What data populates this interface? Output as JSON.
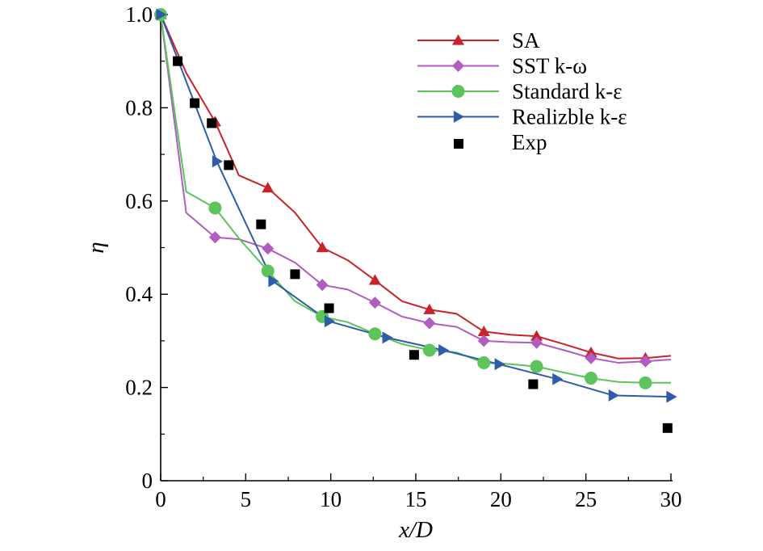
{
  "chart_data": {
    "type": "line",
    "title": "",
    "xlabel": "x/D",
    "ylabel": "η",
    "xlim": [
      0,
      30
    ],
    "ylim": [
      0,
      1.0
    ],
    "xticks": [
      0,
      5,
      10,
      15,
      20,
      25,
      30
    ],
    "xtick_labels": [
      "0",
      "5",
      "10",
      "15",
      "20",
      "25",
      "30"
    ],
    "yticks": [
      0,
      0.2,
      0.4,
      0.6,
      0.8,
      1.0
    ],
    "ytick_labels": [
      "0",
      "0.2",
      "0.4",
      "0.6",
      "0.8",
      "1.0"
    ],
    "grid": false,
    "legend_position": "top-right",
    "series": [
      {
        "name": "SA",
        "color": "#c8232a",
        "marker": "triangle",
        "x": [
          0,
          1.5,
          3.2,
          4.6,
          6.3,
          7.9,
          9.5,
          11.0,
          12.6,
          14.2,
          15.8,
          17.4,
          19.0,
          20.6,
          22.1,
          23.7,
          25.3,
          26.9,
          28.5,
          30.0
        ],
        "y": [
          1.0,
          0.875,
          0.77,
          0.655,
          0.628,
          0.575,
          0.5,
          0.473,
          0.43,
          0.385,
          0.367,
          0.358,
          0.32,
          0.313,
          0.31,
          0.293,
          0.275,
          0.262,
          0.263,
          0.268
        ],
        "marker_indices": [
          0,
          2,
          4,
          6,
          8,
          10,
          12,
          14,
          16,
          18
        ]
      },
      {
        "name": "SST k-ω",
        "color": "#b05cc0",
        "marker": "diamond",
        "x": [
          0,
          1.5,
          3.2,
          4.6,
          6.3,
          7.9,
          9.5,
          11.0,
          12.6,
          14.2,
          15.8,
          17.4,
          19.0,
          20.6,
          22.1,
          23.7,
          25.3,
          26.9,
          28.5,
          30.0
        ],
        "y": [
          1.0,
          0.575,
          0.522,
          0.518,
          0.498,
          0.468,
          0.42,
          0.41,
          0.382,
          0.352,
          0.338,
          0.33,
          0.3,
          0.297,
          0.296,
          0.28,
          0.263,
          0.253,
          0.256,
          0.26
        ],
        "marker_indices": [
          0,
          2,
          4,
          6,
          8,
          10,
          12,
          14,
          16,
          18
        ]
      },
      {
        "name": "Standard k-ε",
        "color": "#5cc45a",
        "marker": "circle",
        "x": [
          0,
          1.5,
          3.2,
          4.6,
          6.3,
          7.9,
          9.5,
          11.0,
          12.6,
          14.2,
          15.8,
          17.4,
          19.0,
          20.6,
          22.1,
          23.7,
          25.3,
          26.9,
          28.5,
          30.0
        ],
        "y": [
          1.0,
          0.62,
          0.585,
          0.52,
          0.45,
          0.385,
          0.352,
          0.34,
          0.315,
          0.293,
          0.28,
          0.275,
          0.253,
          0.25,
          0.245,
          0.232,
          0.22,
          0.212,
          0.21,
          0.21
        ],
        "marker_indices": [
          0,
          2,
          4,
          6,
          8,
          10,
          12,
          14,
          16,
          18
        ]
      },
      {
        "name": "Realizble k-ε",
        "color": "#2f5ca8",
        "marker": "triangle-right",
        "x": [
          0,
          3.3,
          6.6,
          9.9,
          13.3,
          16.6,
          19.9,
          23.3,
          26.6,
          30.0
        ],
        "y": [
          1.0,
          0.685,
          0.428,
          0.342,
          0.307,
          0.28,
          0.25,
          0.218,
          0.183,
          0.18
        ],
        "marker_indices": [
          0,
          1,
          2,
          3,
          4,
          5,
          6,
          7,
          8,
          9
        ]
      }
    ],
    "scatter": {
      "name": "Exp",
      "color": "#000000",
      "marker": "square",
      "x": [
        1.0,
        2.0,
        3.0,
        4.0,
        5.9,
        7.9,
        9.9,
        14.9,
        21.9,
        29.8
      ],
      "y": [
        0.9,
        0.81,
        0.767,
        0.677,
        0.55,
        0.443,
        0.37,
        0.27,
        0.207,
        0.113
      ]
    }
  }
}
